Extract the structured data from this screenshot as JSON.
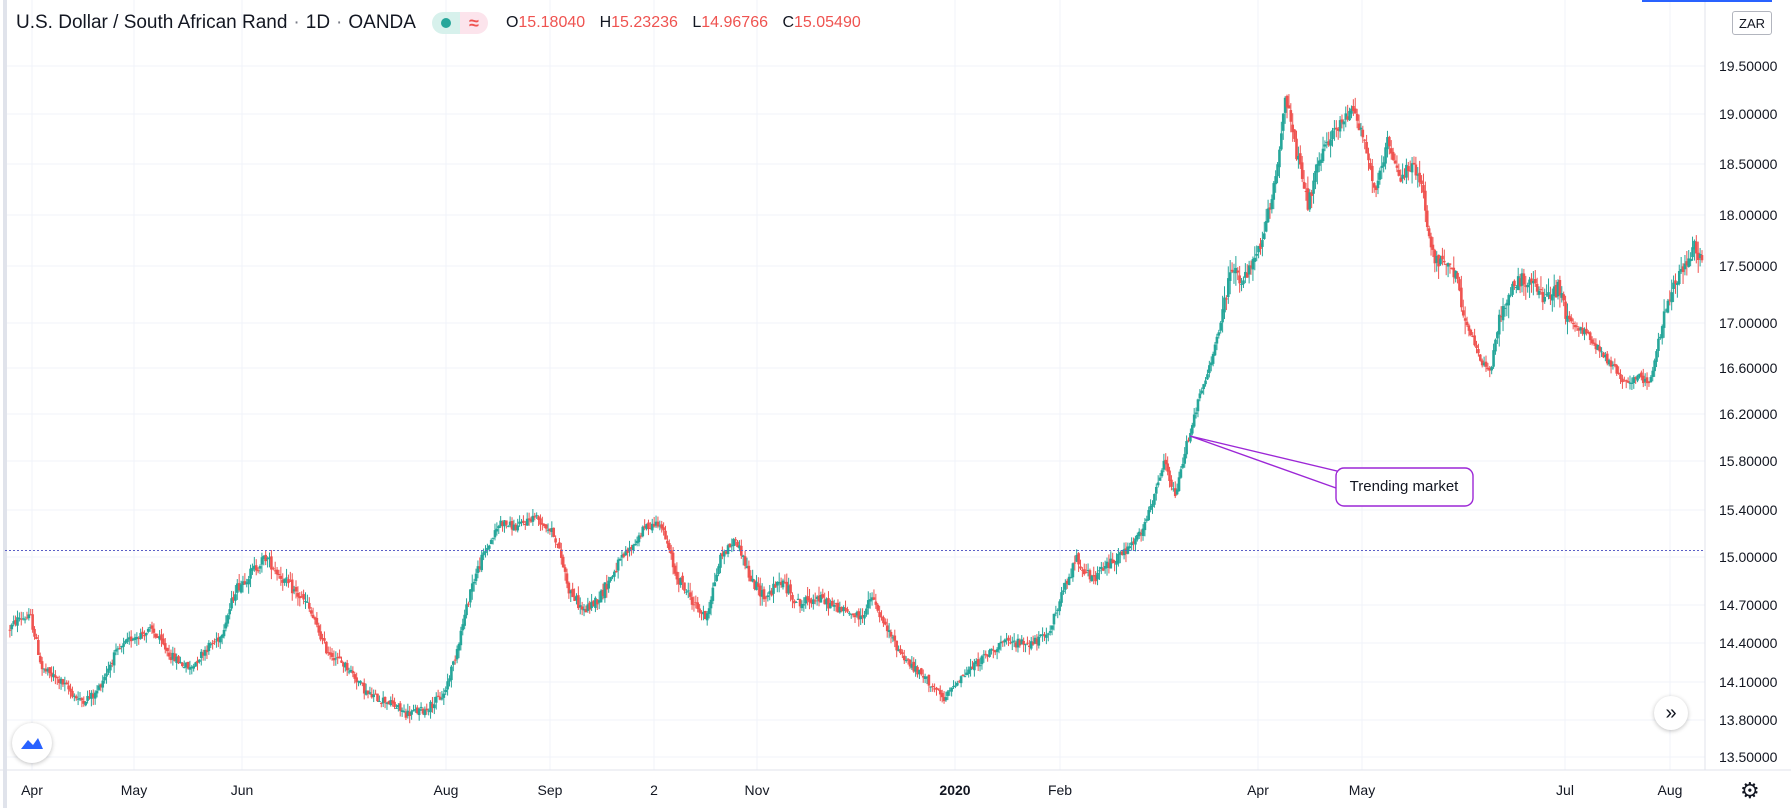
{
  "header": {
    "symbol": "U.S. Dollar / South African Rand",
    "interval": "1D",
    "exchange": "OANDA",
    "ohlc": {
      "o_label": "O",
      "o": "15.18040",
      "h_label": "H",
      "h": "15.23236",
      "l_label": "L",
      "l": "14.96766",
      "c_label": "C",
      "c": "15.05490"
    },
    "currency_button": "ZAR",
    "up_color": "#26a69a",
    "down_color": "#ef5350"
  },
  "chart_data": {
    "type": "candlestick",
    "y_ticks": [
      "13.50000",
      "13.80000",
      "14.10000",
      "14.40000",
      "14.70000",
      "15.00000",
      "15.40000",
      "15.80000",
      "16.20000",
      "16.60000",
      "17.00000",
      "17.50000",
      "18.00000",
      "18.50000",
      "19.00000",
      "19.50000"
    ],
    "y_ticks_values": [
      13.5,
      13.8,
      14.1,
      14.4,
      14.7,
      15.0,
      15.4,
      15.8,
      16.2,
      16.6,
      17.0,
      17.5,
      18.0,
      18.5,
      19.0,
      19.5
    ],
    "x_ticks": [
      {
        "label": "Apr",
        "bold": false
      },
      {
        "label": "May",
        "bold": false
      },
      {
        "label": "Jun",
        "bold": false
      },
      {
        "label": "Aug",
        "bold": false
      },
      {
        "label": "Sep",
        "bold": false
      },
      {
        "label": "2",
        "bold": false
      },
      {
        "label": "Nov",
        "bold": false
      },
      {
        "label": "2020",
        "bold": true
      },
      {
        "label": "Feb",
        "bold": false
      },
      {
        "label": "Apr",
        "bold": false
      },
      {
        "label": "May",
        "bold": false
      },
      {
        "label": "Jul",
        "bold": false
      },
      {
        "label": "Aug",
        "bold": false
      }
    ],
    "price_path": [
      [
        0,
        14.5
      ],
      [
        6,
        14.6
      ],
      [
        12,
        14.6
      ],
      [
        18,
        14.2
      ],
      [
        28,
        14.1
      ],
      [
        38,
        13.95
      ],
      [
        46,
        14.0
      ],
      [
        56,
        14.3
      ],
      [
        66,
        14.45
      ],
      [
        76,
        14.5
      ],
      [
        86,
        14.3
      ],
      [
        96,
        14.2
      ],
      [
        104,
        14.35
      ],
      [
        112,
        14.45
      ],
      [
        120,
        14.8
      ],
      [
        128,
        14.9
      ],
      [
        136,
        15.0
      ],
      [
        146,
        14.85
      ],
      [
        158,
        14.7
      ],
      [
        168,
        14.35
      ],
      [
        180,
        14.2
      ],
      [
        190,
        14.0
      ],
      [
        200,
        13.95
      ],
      [
        210,
        13.85
      ],
      [
        220,
        13.88
      ],
      [
        230,
        14.0
      ],
      [
        236,
        14.3
      ],
      [
        244,
        14.8
      ],
      [
        252,
        15.05
      ],
      [
        260,
        15.3
      ],
      [
        268,
        15.25
      ],
      [
        278,
        15.35
      ],
      [
        288,
        15.2
      ],
      [
        296,
        14.8
      ],
      [
        304,
        14.65
      ],
      [
        312,
        14.75
      ],
      [
        322,
        14.95
      ],
      [
        330,
        15.1
      ],
      [
        336,
        15.25
      ],
      [
        344,
        15.3
      ],
      [
        352,
        14.9
      ],
      [
        360,
        14.75
      ],
      [
        368,
        14.6
      ],
      [
        376,
        15.0
      ],
      [
        384,
        15.15
      ],
      [
        392,
        14.85
      ],
      [
        400,
        14.75
      ],
      [
        408,
        14.85
      ],
      [
        418,
        14.7
      ],
      [
        426,
        14.75
      ],
      [
        434,
        14.7
      ],
      [
        442,
        14.65
      ],
      [
        450,
        14.6
      ],
      [
        456,
        14.75
      ],
      [
        462,
        14.55
      ],
      [
        470,
        14.35
      ],
      [
        478,
        14.2
      ],
      [
        486,
        14.1
      ],
      [
        494,
        13.95
      ],
      [
        500,
        14.1
      ],
      [
        508,
        14.2
      ],
      [
        516,
        14.3
      ],
      [
        524,
        14.4
      ],
      [
        532,
        14.4
      ],
      [
        540,
        14.4
      ],
      [
        548,
        14.45
      ],
      [
        556,
        14.75
      ],
      [
        564,
        15.0
      ],
      [
        572,
        14.85
      ],
      [
        580,
        14.95
      ],
      [
        590,
        15.05
      ],
      [
        598,
        15.2
      ],
      [
        604,
        15.45
      ],
      [
        610,
        15.8
      ],
      [
        616,
        15.5
      ],
      [
        622,
        15.95
      ],
      [
        628,
        16.3
      ],
      [
        634,
        16.6
      ],
      [
        640,
        17.0
      ],
      [
        646,
        17.5
      ],
      [
        652,
        17.35
      ],
      [
        658,
        17.55
      ],
      [
        664,
        17.9
      ],
      [
        670,
        18.5
      ],
      [
        674,
        19.2
      ],
      [
        680,
        18.6
      ],
      [
        686,
        18.1
      ],
      [
        692,
        18.5
      ],
      [
        698,
        18.8
      ],
      [
        704,
        18.9
      ],
      [
        710,
        19.1
      ],
      [
        716,
        18.7
      ],
      [
        722,
        18.2
      ],
      [
        728,
        18.7
      ],
      [
        734,
        18.35
      ],
      [
        740,
        18.5
      ],
      [
        746,
        18.3
      ],
      [
        752,
        17.6
      ],
      [
        758,
        17.5
      ],
      [
        764,
        17.4
      ],
      [
        770,
        17.0
      ],
      [
        776,
        16.7
      ],
      [
        782,
        16.55
      ],
      [
        788,
        17.1
      ],
      [
        794,
        17.3
      ],
      [
        800,
        17.4
      ],
      [
        806,
        17.3
      ],
      [
        812,
        17.2
      ],
      [
        818,
        17.3
      ],
      [
        824,
        17.0
      ],
      [
        830,
        16.95
      ],
      [
        836,
        16.85
      ],
      [
        842,
        16.7
      ],
      [
        848,
        16.6
      ],
      [
        854,
        16.45
      ],
      [
        860,
        16.55
      ],
      [
        866,
        16.45
      ],
      [
        872,
        16.9
      ],
      [
        878,
        17.3
      ],
      [
        884,
        17.5
      ],
      [
        890,
        17.7
      ],
      [
        894,
        17.55
      ]
    ],
    "horizontal_line": 15.0549,
    "annotation": "Trending market",
    "grid": true
  }
}
